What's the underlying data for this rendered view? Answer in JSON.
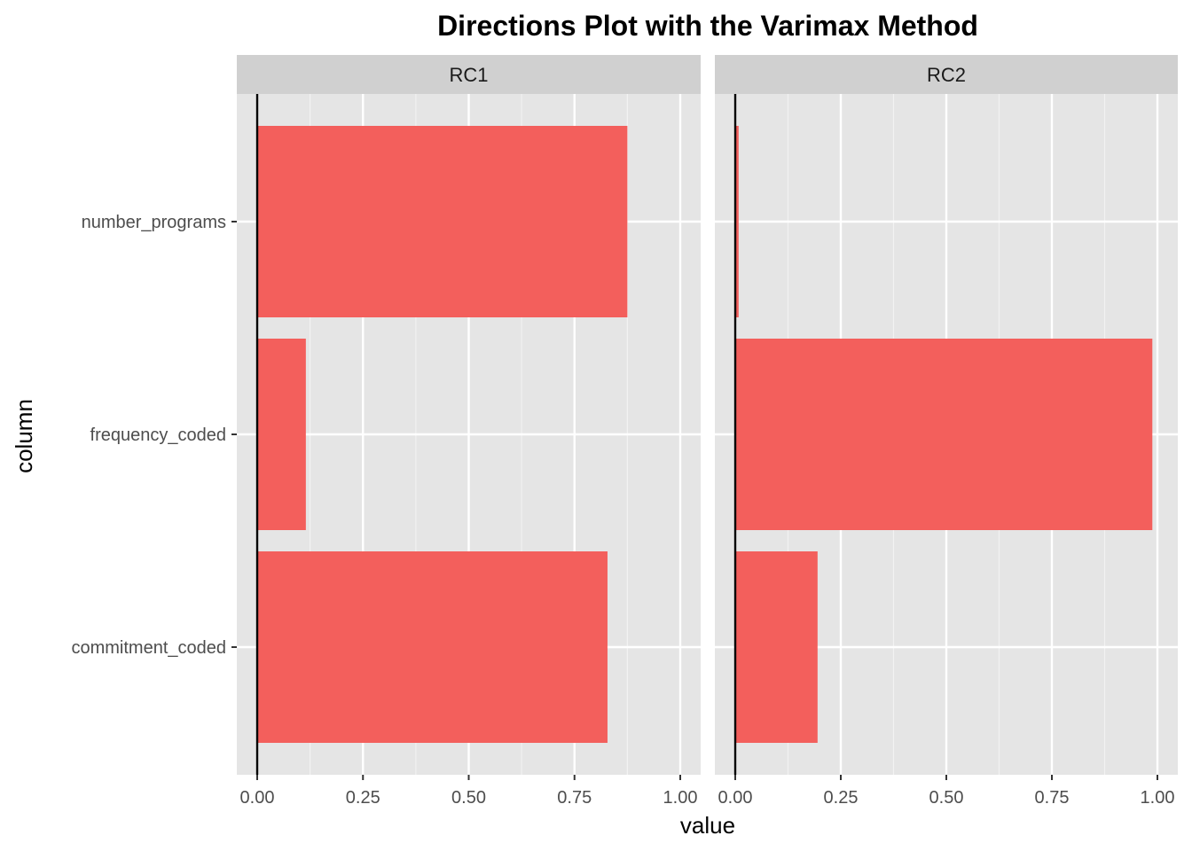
{
  "chart_data": {
    "type": "bar",
    "orientation": "horizontal",
    "title": "Directions Plot with the Varimax Method",
    "xlabel": "value",
    "ylabel": "column",
    "categories": [
      "number_programs",
      "frequency_coded",
      "commitment_coded"
    ],
    "xlim": [
      0,
      1
    ],
    "x_ticks": [
      "0.00",
      "0.25",
      "0.50",
      "0.75",
      "1.00"
    ],
    "grid": true,
    "legend": "none",
    "bar_color": "#f35f5c",
    "panel_background": "#e5e5e5",
    "strip_background": "#d0d0d0",
    "facets": [
      {
        "name": "RC1",
        "values": [
          0.875,
          0.115,
          0.828
        ]
      },
      {
        "name": "RC2",
        "values": [
          0.008,
          0.988,
          0.195
        ]
      }
    ]
  }
}
